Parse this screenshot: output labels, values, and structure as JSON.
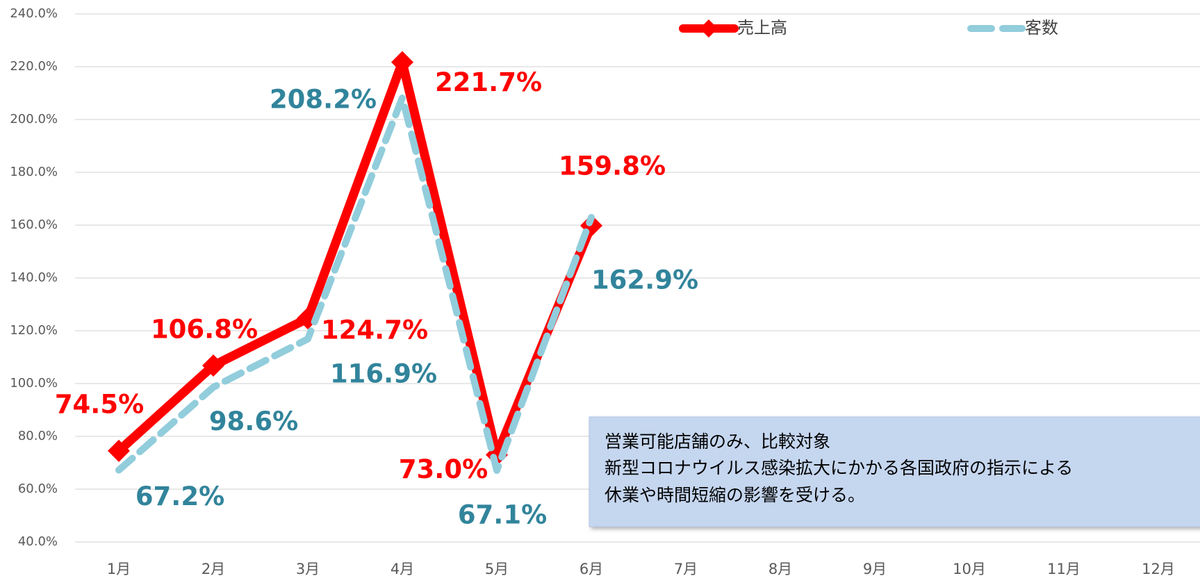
{
  "chart_data": {
    "type": "line",
    "categories": [
      "1月",
      "2月",
      "3月",
      "4月",
      "5月",
      "6月",
      "7月",
      "8月",
      "9月",
      "10月",
      "11月",
      "12月"
    ],
    "series": [
      {
        "name": "売上高",
        "color": "#ff0000",
        "label_color": "#ff0000",
        "marker": "diamond",
        "dashed": false,
        "values": [
          74.5,
          106.8,
          124.7,
          221.7,
          73.0,
          159.8,
          null,
          null,
          null,
          null,
          null,
          null
        ],
        "value_labels": [
          "74.5%",
          "106.8%",
          "124.7%",
          "221.7%",
          "73.0%",
          "159.8%",
          null,
          null,
          null,
          null,
          null,
          null
        ]
      },
      {
        "name": "客数",
        "color": "#92cddc",
        "label_color": "#31849b",
        "marker": null,
        "dashed": true,
        "values": [
          67.2,
          98.6,
          116.9,
          208.2,
          67.1,
          162.9,
          null,
          null,
          null,
          null,
          null,
          null
        ],
        "value_labels": [
          "67.2%",
          "98.6%",
          "116.9%",
          "208.2%",
          "67.1%",
          "162.9%",
          null,
          null,
          null,
          null,
          null,
          null
        ]
      }
    ],
    "ylim": [
      40,
      240
    ],
    "yticks": [
      {
        "value": 40,
        "label": "40.0%"
      },
      {
        "value": 60,
        "label": "60.0%"
      },
      {
        "value": 80,
        "label": "80.0%"
      },
      {
        "value": 100,
        "label": "100.0%"
      },
      {
        "value": 120,
        "label": "120.0%"
      },
      {
        "value": 140,
        "label": "140.0%"
      },
      {
        "value": 160,
        "label": "160.0%"
      },
      {
        "value": 180,
        "label": "180.0%"
      },
      {
        "value": 200,
        "label": "200.0%"
      },
      {
        "value": 220,
        "label": "220.0%"
      },
      {
        "value": 240,
        "label": "240.0%"
      }
    ],
    "grid": true,
    "annotation": [
      "営業可能店舗のみ、比較対象",
      "新型コロナウイルス感染拡大にかかる各国政府の指示による",
      "休業や時間短縮の影響を受ける。"
    ]
  }
}
